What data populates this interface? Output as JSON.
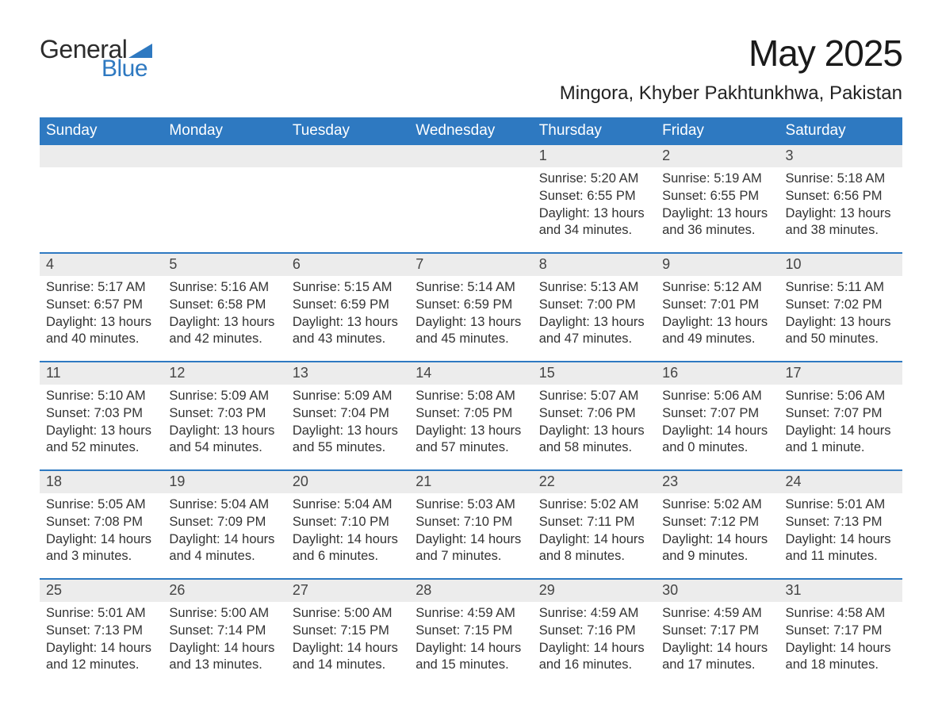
{
  "brand": {
    "word1": "General",
    "word2": "Blue",
    "triangle_color": "#2e79c1"
  },
  "title": "May 2025",
  "location": "Mingora, Khyber Pakhtunkhwa, Pakistan",
  "colors": {
    "header_bg": "#2e79c1",
    "header_text": "#ffffff",
    "row_divider": "#2e79c1",
    "daynum_bg": "#ececec",
    "body_text": "#333333",
    "page_bg": "#ffffff"
  },
  "day_headers": [
    "Sunday",
    "Monday",
    "Tuesday",
    "Wednesday",
    "Thursday",
    "Friday",
    "Saturday"
  ],
  "weeks": [
    [
      null,
      null,
      null,
      null,
      {
        "n": "1",
        "sunrise": "Sunrise: 5:20 AM",
        "sunset": "Sunset: 6:55 PM",
        "daylight": "Daylight: 13 hours and 34 minutes."
      },
      {
        "n": "2",
        "sunrise": "Sunrise: 5:19 AM",
        "sunset": "Sunset: 6:55 PM",
        "daylight": "Daylight: 13 hours and 36 minutes."
      },
      {
        "n": "3",
        "sunrise": "Sunrise: 5:18 AM",
        "sunset": "Sunset: 6:56 PM",
        "daylight": "Daylight: 13 hours and 38 minutes."
      }
    ],
    [
      {
        "n": "4",
        "sunrise": "Sunrise: 5:17 AM",
        "sunset": "Sunset: 6:57 PM",
        "daylight": "Daylight: 13 hours and 40 minutes."
      },
      {
        "n": "5",
        "sunrise": "Sunrise: 5:16 AM",
        "sunset": "Sunset: 6:58 PM",
        "daylight": "Daylight: 13 hours and 42 minutes."
      },
      {
        "n": "6",
        "sunrise": "Sunrise: 5:15 AM",
        "sunset": "Sunset: 6:59 PM",
        "daylight": "Daylight: 13 hours and 43 minutes."
      },
      {
        "n": "7",
        "sunrise": "Sunrise: 5:14 AM",
        "sunset": "Sunset: 6:59 PM",
        "daylight": "Daylight: 13 hours and 45 minutes."
      },
      {
        "n": "8",
        "sunrise": "Sunrise: 5:13 AM",
        "sunset": "Sunset: 7:00 PM",
        "daylight": "Daylight: 13 hours and 47 minutes."
      },
      {
        "n": "9",
        "sunrise": "Sunrise: 5:12 AM",
        "sunset": "Sunset: 7:01 PM",
        "daylight": "Daylight: 13 hours and 49 minutes."
      },
      {
        "n": "10",
        "sunrise": "Sunrise: 5:11 AM",
        "sunset": "Sunset: 7:02 PM",
        "daylight": "Daylight: 13 hours and 50 minutes."
      }
    ],
    [
      {
        "n": "11",
        "sunrise": "Sunrise: 5:10 AM",
        "sunset": "Sunset: 7:03 PM",
        "daylight": "Daylight: 13 hours and 52 minutes."
      },
      {
        "n": "12",
        "sunrise": "Sunrise: 5:09 AM",
        "sunset": "Sunset: 7:03 PM",
        "daylight": "Daylight: 13 hours and 54 minutes."
      },
      {
        "n": "13",
        "sunrise": "Sunrise: 5:09 AM",
        "sunset": "Sunset: 7:04 PM",
        "daylight": "Daylight: 13 hours and 55 minutes."
      },
      {
        "n": "14",
        "sunrise": "Sunrise: 5:08 AM",
        "sunset": "Sunset: 7:05 PM",
        "daylight": "Daylight: 13 hours and 57 minutes."
      },
      {
        "n": "15",
        "sunrise": "Sunrise: 5:07 AM",
        "sunset": "Sunset: 7:06 PM",
        "daylight": "Daylight: 13 hours and 58 minutes."
      },
      {
        "n": "16",
        "sunrise": "Sunrise: 5:06 AM",
        "sunset": "Sunset: 7:07 PM",
        "daylight": "Daylight: 14 hours and 0 minutes."
      },
      {
        "n": "17",
        "sunrise": "Sunrise: 5:06 AM",
        "sunset": "Sunset: 7:07 PM",
        "daylight": "Daylight: 14 hours and 1 minute."
      }
    ],
    [
      {
        "n": "18",
        "sunrise": "Sunrise: 5:05 AM",
        "sunset": "Sunset: 7:08 PM",
        "daylight": "Daylight: 14 hours and 3 minutes."
      },
      {
        "n": "19",
        "sunrise": "Sunrise: 5:04 AM",
        "sunset": "Sunset: 7:09 PM",
        "daylight": "Daylight: 14 hours and 4 minutes."
      },
      {
        "n": "20",
        "sunrise": "Sunrise: 5:04 AM",
        "sunset": "Sunset: 7:10 PM",
        "daylight": "Daylight: 14 hours and 6 minutes."
      },
      {
        "n": "21",
        "sunrise": "Sunrise: 5:03 AM",
        "sunset": "Sunset: 7:10 PM",
        "daylight": "Daylight: 14 hours and 7 minutes."
      },
      {
        "n": "22",
        "sunrise": "Sunrise: 5:02 AM",
        "sunset": "Sunset: 7:11 PM",
        "daylight": "Daylight: 14 hours and 8 minutes."
      },
      {
        "n": "23",
        "sunrise": "Sunrise: 5:02 AM",
        "sunset": "Sunset: 7:12 PM",
        "daylight": "Daylight: 14 hours and 9 minutes."
      },
      {
        "n": "24",
        "sunrise": "Sunrise: 5:01 AM",
        "sunset": "Sunset: 7:13 PM",
        "daylight": "Daylight: 14 hours and 11 minutes."
      }
    ],
    [
      {
        "n": "25",
        "sunrise": "Sunrise: 5:01 AM",
        "sunset": "Sunset: 7:13 PM",
        "daylight": "Daylight: 14 hours and 12 minutes."
      },
      {
        "n": "26",
        "sunrise": "Sunrise: 5:00 AM",
        "sunset": "Sunset: 7:14 PM",
        "daylight": "Daylight: 14 hours and 13 minutes."
      },
      {
        "n": "27",
        "sunrise": "Sunrise: 5:00 AM",
        "sunset": "Sunset: 7:15 PM",
        "daylight": "Daylight: 14 hours and 14 minutes."
      },
      {
        "n": "28",
        "sunrise": "Sunrise: 4:59 AM",
        "sunset": "Sunset: 7:15 PM",
        "daylight": "Daylight: 14 hours and 15 minutes."
      },
      {
        "n": "29",
        "sunrise": "Sunrise: 4:59 AM",
        "sunset": "Sunset: 7:16 PM",
        "daylight": "Daylight: 14 hours and 16 minutes."
      },
      {
        "n": "30",
        "sunrise": "Sunrise: 4:59 AM",
        "sunset": "Sunset: 7:17 PM",
        "daylight": "Daylight: 14 hours and 17 minutes."
      },
      {
        "n": "31",
        "sunrise": "Sunrise: 4:58 AM",
        "sunset": "Sunset: 7:17 PM",
        "daylight": "Daylight: 14 hours and 18 minutes."
      }
    ]
  ]
}
